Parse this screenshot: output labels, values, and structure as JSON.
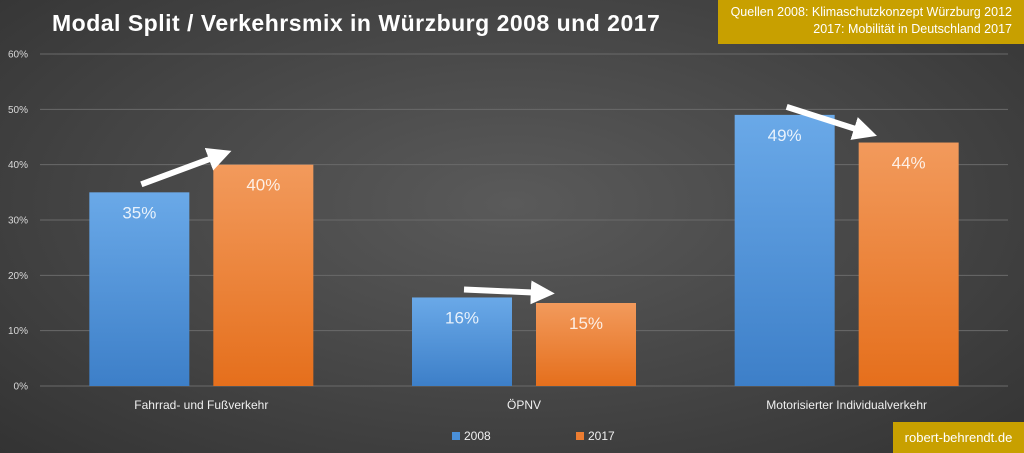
{
  "title": "Modal Split / Verkehrsmix in Würzburg 2008 und 2017",
  "sources": {
    "line1": "Quellen 2008: Klimaschutzkonzept Würzburg 2012",
    "line2": "2017: Mobilität in Deutschland 2017"
  },
  "credit": "robert-behrendt.de",
  "colors": {
    "s2008": "#4a90d9",
    "s2017": "#ed7d31",
    "grid": "#6a6a6a"
  },
  "chart_data": {
    "type": "bar",
    "title": "Modal Split / Verkehrsmix in Würzburg 2008 und 2017",
    "categories": [
      "Fahrrad- und Fußverkehr",
      "ÖPNV",
      "Motorisierter Individualverkehr"
    ],
    "series": [
      {
        "name": "2008",
        "values": [
          35,
          16,
          49
        ],
        "labels": [
          "35%",
          "16%",
          "49%"
        ]
      },
      {
        "name": "2017",
        "values": [
          40,
          15,
          44
        ],
        "labels": [
          "40%",
          "15%",
          "44%"
        ]
      }
    ],
    "yticks": [
      "0%",
      "10%",
      "20%",
      "30%",
      "40%",
      "50%",
      "60%"
    ],
    "ylim": [
      0,
      60
    ],
    "grid": true,
    "legend": "bottom-center",
    "annotations": "white arrows indicating change from 2008 to 2017 for each category"
  }
}
